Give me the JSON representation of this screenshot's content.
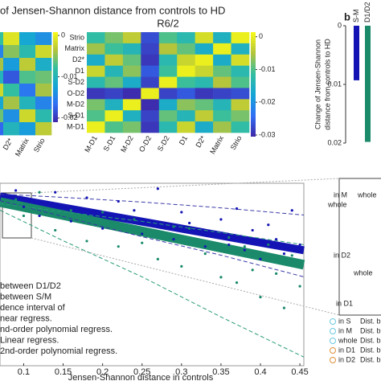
{
  "chart_data": [
    {
      "type": "heatmap",
      "title": "of Jensen-Shannon distance from controls to HD",
      "x_categories": [
        null,
        "D2*",
        "Matrix",
        "Strio"
      ],
      "values": [
        [
          -0.008,
          -0.001,
          -0.012,
          -0.014
        ],
        [
          -0.015,
          -0.005,
          -0.009,
          -0.002
        ],
        [
          -0.004,
          -0.013,
          -0.003,
          -0.011
        ],
        [
          -0.01,
          -0.018,
          -0.007,
          -0.006
        ],
        [
          -0.002,
          -0.008,
          -0.016,
          -0.004
        ],
        [
          -0.012,
          -0.004,
          -0.01,
          -0.015
        ],
        [
          -0.006,
          -0.014,
          -0.002,
          -0.009
        ],
        [
          -0.017,
          -0.01,
          -0.013,
          -0.003
        ]
      ],
      "clim": [
        -0.021,
        0.0008
      ],
      "cticks": [
        0,
        -0.01,
        -0.02
      ]
    },
    {
      "type": "heatmap",
      "title": "R6/2",
      "y_categories": [
        "Strio",
        "Matrix",
        "D2*",
        "D1",
        "S-D2",
        "O-D2",
        "M-D2",
        "S-D1",
        "M-D1"
      ],
      "x_categories": [
        "M-D1",
        "S-D1",
        "M-D2",
        "O-D2",
        "S-D2",
        "D1",
        "D2*",
        "Matrix",
        "Strio"
      ],
      "values": [
        [
          -0.012,
          -0.008,
          -0.004,
          -0.027,
          -0.01,
          -0.013,
          -0.002,
          -0.015,
          0
        ],
        [
          -0.006,
          -0.011,
          -0.014,
          -0.028,
          -0.005,
          -0.009,
          -0.016,
          0,
          -0.015
        ],
        [
          -0.016,
          -0.004,
          -0.009,
          -0.029,
          -0.013,
          -0.003,
          0,
          -0.016,
          -0.002
        ],
        [
          -0.003,
          -0.014,
          -0.007,
          -0.026,
          -0.011,
          0,
          -0.003,
          -0.009,
          -0.013
        ],
        [
          -0.013,
          -0.009,
          -0.016,
          -0.028,
          0,
          -0.011,
          -0.013,
          -0.005,
          -0.01
        ],
        [
          -0.029,
          -0.028,
          -0.03,
          0,
          -0.028,
          -0.026,
          -0.029,
          -0.028,
          -0.027
        ],
        [
          -0.008,
          -0.015,
          0,
          -0.03,
          -0.016,
          -0.007,
          -0.009,
          -0.014,
          -0.004
        ],
        [
          -0.01,
          0,
          -0.015,
          -0.028,
          -0.009,
          -0.014,
          -0.004,
          -0.011,
          -0.008
        ],
        [
          0,
          -0.01,
          -0.008,
          -0.029,
          -0.013,
          -0.003,
          -0.016,
          -0.006,
          -0.012
        ]
      ],
      "clim": [
        -0.0305,
        0.0014
      ],
      "cticks": [
        0,
        -0.01,
        -0.02,
        -0.03
      ]
    },
    {
      "type": "bar",
      "panel_label": "b",
      "ylabel": [
        "Change of Jensen-Shannon",
        "distance from controls to HD"
      ],
      "categories": [
        "S-M",
        "D1/D2"
      ],
      "values": [
        0.0093,
        0.0198
      ],
      "colors": [
        "#1414b4",
        "#1a8a6a"
      ],
      "ylim": [
        0,
        0.02
      ],
      "yticks": [
        0,
        0.01,
        0.02
      ],
      "y_inverted": true
    },
    {
      "type": "scatter",
      "xlabel": "Jensen-Shannon distance in controls",
      "xlim": [
        0.07,
        0.455
      ],
      "ylim": [
        -0.7,
        9.4
      ],
      "xticks": [
        0.1,
        0.15,
        0.2,
        0.25,
        0.3,
        0.35,
        0.4,
        0.45
      ],
      "x": [
        0.09,
        0.1,
        0.12,
        0.14,
        0.16,
        0.18,
        0.2,
        0.22,
        0.24,
        0.25,
        0.27,
        0.29,
        0.3,
        0.31,
        0.33,
        0.35,
        0.36,
        0.37,
        0.38,
        0.39,
        0.4,
        0.41,
        0.42,
        0.43,
        0.44,
        0.45
      ],
      "series": [
        {
          "color": "#1a8a6a",
          "values": [
            8.5,
            7.6,
            8.9,
            6.8,
            7.9,
            6.2,
            7.8,
            5.9,
            7.4,
            6.1,
            5.2,
            7.0,
            4.8,
            6.9,
            5.5,
            4.2,
            6.4,
            3.9,
            5.9,
            4.6,
            3.1,
            6.0,
            4.4,
            2.5,
            5.4,
            3.7
          ]
        },
        {
          "color": "#1414b4",
          "values": [
            9.0,
            8.1,
            7.6,
            8.9,
            7.3,
            8.6,
            6.9,
            8.4,
            7.9,
            6.6,
            9.1,
            6.3,
            7.8,
            7.2,
            5.9,
            7.4,
            6.0,
            8.0,
            5.7,
            6.8,
            5.2,
            7.1,
            6.3,
            5.5,
            7.9,
            6.0
          ]
        }
      ],
      "fits": [
        {
          "color": "#1414b4",
          "width": 10,
          "x": [
            0.07,
            0.455
          ],
          "values": [
            8.67,
            5.69
          ]
        },
        {
          "color": "#1a8a6a",
          "width": 12,
          "x": [
            0.07,
            0.455
          ],
          "values": [
            8.36,
            4.89
          ]
        },
        {
          "color": "#3a3aa8",
          "dashed": true,
          "x": [
            0.07,
            0.15,
            0.25,
            0.35,
            0.455
          ],
          "values": [
            8.8,
            8.62,
            8.36,
            8.04,
            7.64
          ]
        },
        {
          "color": "#3a3aa8",
          "dashed": true,
          "x": [
            0.07,
            0.15,
            0.25,
            0.35,
            0.455
          ],
          "values": [
            8.44,
            7.56,
            6.44,
            5.42,
            4.22
          ]
        },
        {
          "color": "#2a9a7a",
          "dashed": true,
          "x": [
            0.07,
            0.15,
            0.25,
            0.35,
            0.455
          ],
          "values": [
            8.27,
            7.82,
            7.29,
            6.67,
            6.0
          ]
        },
        {
          "color": "#2a9a7a",
          "dashed": true,
          "x": [
            0.07,
            0.15,
            0.25,
            0.35,
            0.455
          ],
          "values": [
            7.91,
            6.22,
            4.22,
            2.0,
            -0.22
          ]
        }
      ],
      "legend_texts": [
        "between D1/D2",
        "between S/M",
        "dence interval of",
        "near regress.",
        "nd-order polynomial regress.",
        "Linear regress.",
        "2nd-order polynomial regress."
      ]
    }
  ],
  "inset": {
    "labels": [
      "in M",
      "whole",
      "whole",
      "in D2",
      "whole",
      "in D1"
    ]
  },
  "side_legend": {
    "items": [
      {
        "label": "in S",
        "text": "Dist. b",
        "color": "#6cc8e0"
      },
      {
        "label": "in M",
        "text": "Dist. b",
        "color": "#6cc8e0"
      },
      {
        "label": "whole",
        "text": "Dist. b",
        "color": "#6cc8e0"
      },
      {
        "label": "in D1",
        "text": "Dist. b",
        "color": "#e0903a"
      },
      {
        "label": "in D2",
        "text": "Dist. b",
        "color": "#e0903a"
      }
    ]
  }
}
